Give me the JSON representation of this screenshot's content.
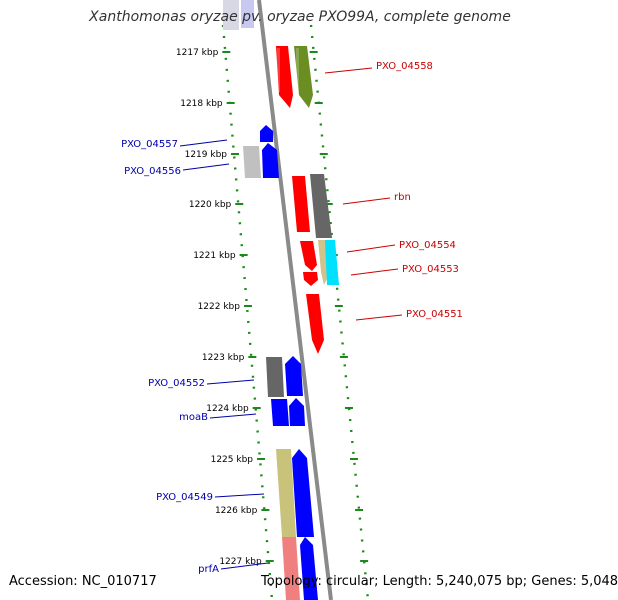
{
  "title": "Xanthomonas oryzae pv. oryzae PXO99A, complete genome",
  "footer": {
    "accession": "Accession: NC_010717",
    "summary": "Topology: circular; Length: 5,240,075 bp; Genes: 5,048"
  },
  "colors": {
    "backbone": "#8a8a8a",
    "tick_green": "#1a8a1a",
    "label_red": "#cc0000",
    "label_blue": "#0000aa"
  },
  "ticks": [
    "1217 kbp",
    "1218 kbp",
    "1219 kbp",
    "1220 kbp",
    "1221 kbp",
    "1222 kbp",
    "1223 kbp",
    "1224 kbp",
    "1225 kbp",
    "1226 kbp",
    "1227 kbp"
  ],
  "labels": [
    {
      "text": "PXO_04558",
      "side": "right",
      "color": "red"
    },
    {
      "text": "PXO_04557",
      "side": "left",
      "color": "blue"
    },
    {
      "text": "PXO_04556",
      "side": "left",
      "color": "blue"
    },
    {
      "text": "rbn",
      "side": "right",
      "color": "red"
    },
    {
      "text": "PXO_04554",
      "side": "right",
      "color": "red"
    },
    {
      "text": "PXO_04553",
      "side": "right",
      "color": "red"
    },
    {
      "text": "PXO_04551",
      "side": "right",
      "color": "red"
    },
    {
      "text": "PXO_04552",
      "side": "left",
      "color": "blue"
    },
    {
      "text": "moaB",
      "side": "left",
      "color": "blue"
    },
    {
      "text": "PXO_04549",
      "side": "left",
      "color": "blue"
    },
    {
      "text": "prfA",
      "side": "left",
      "color": "blue"
    }
  ]
}
